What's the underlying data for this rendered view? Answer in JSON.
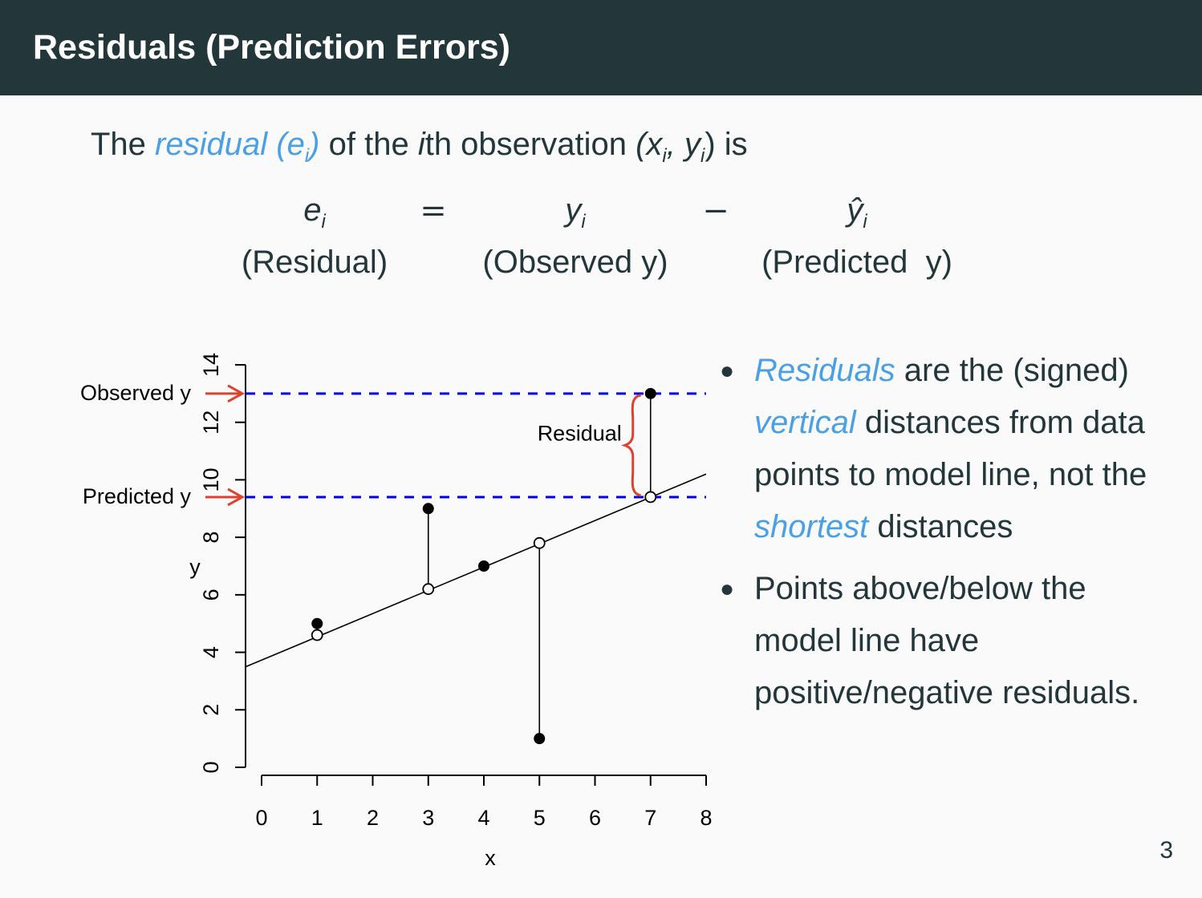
{
  "header": {
    "title": "Residuals (Prediction Errors)"
  },
  "intro": {
    "p1": "The ",
    "em_word": "residual",
    "em_sym": "(e",
    "em_sub": "i",
    "em_close": ")",
    "p2": " of the ",
    "i_letter": "i",
    "p3": "th observation ",
    "obs_open": "(x",
    "obs_sub1": "i",
    "obs_mid": ", y",
    "obs_sub2": "i",
    "obs_close": ")",
    "p4": " is"
  },
  "equation": {
    "e": "e",
    "e_sub": "i",
    "equals": "=",
    "y": "y",
    "y_sub": "i",
    "minus": "−",
    "yhat": "ŷ",
    "yhat_sub": "i",
    "label_residual": "(Residual)",
    "label_observed": "(Observed y)",
    "label_predicted": "(Predicted  y)"
  },
  "chart_data": {
    "type": "scatter",
    "xlabel": "x",
    "ylabel": "y",
    "xlim": [
      0,
      8
    ],
    "ylim": [
      0,
      14
    ],
    "xticks": [
      0,
      1,
      2,
      3,
      4,
      5,
      6,
      7,
      8
    ],
    "yticks": [
      0,
      2,
      4,
      6,
      8,
      10,
      12,
      14
    ],
    "observed": {
      "x": [
        1,
        3,
        4,
        5,
        7
      ],
      "y": [
        5,
        9,
        7,
        1,
        13
      ]
    },
    "predicted": {
      "x": [
        1,
        3,
        5,
        7
      ],
      "y": [
        4.6,
        6.2,
        7.8,
        9.4
      ]
    },
    "fit_line": {
      "intercept": 3.8,
      "slope": 0.8
    },
    "ref_lines": [
      {
        "y": 13,
        "label": "Observed y"
      },
      {
        "y": 9.4,
        "label": "Predicted y"
      }
    ],
    "brace_label": "Residual",
    "colors": {
      "ref_line": "#0000ee",
      "arrow": "#e04030",
      "brace": "#e04030"
    }
  },
  "bullets": {
    "b1": {
      "em1": "Residuals",
      "t1": " are the (signed) ",
      "em2": "vertical",
      "t2": " distances from data points to model line, not the ",
      "em3": "shortest",
      "t3": " distances"
    },
    "b2": {
      "text": "Points above/below the model line have positive/negative residuals."
    }
  },
  "page_number": "3"
}
